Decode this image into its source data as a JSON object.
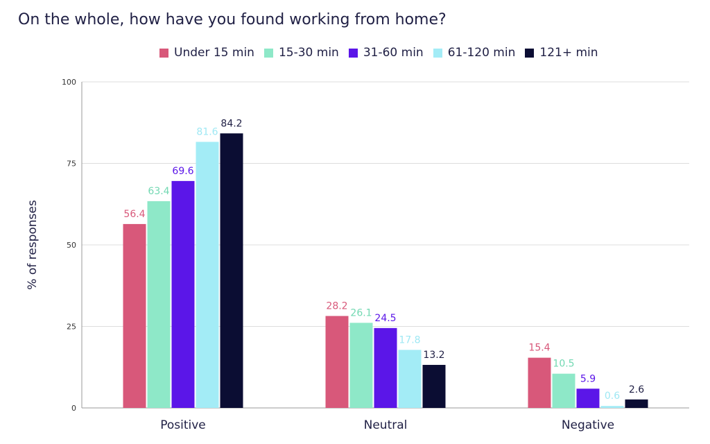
{
  "chart_data": {
    "type": "bar",
    "title": "On the whole, how have you found working from home?",
    "xlabel": "",
    "ylabel": "% of responses",
    "ylim": [
      0,
      100
    ],
    "yticks": [
      0,
      25,
      50,
      75,
      100
    ],
    "grid": true,
    "legend_position": "top",
    "categories": [
      "Positive",
      "Neutral",
      "Negative"
    ],
    "series": [
      {
        "name": "Under 15 min",
        "color": "#d8587a",
        "label_color": "#d8587a",
        "values": [
          56.4,
          28.2,
          15.4
        ]
      },
      {
        "name": "15-30 min",
        "color": "#8ee8c8",
        "label_color": "#72d8b2",
        "values": [
          63.4,
          26.1,
          10.5
        ]
      },
      {
        "name": "31-60 min",
        "color": "#5b16e8",
        "label_color": "#5b16e8",
        "values": [
          69.6,
          24.5,
          5.9
        ]
      },
      {
        "name": "61-120 min",
        "color": "#a3ecf6",
        "label_color": "#9fe8f4",
        "values": [
          81.6,
          17.8,
          0.6
        ]
      },
      {
        "name": "121+ min",
        "color": "#0b0d33",
        "label_color": "#1f1f44",
        "values": [
          84.2,
          13.2,
          2.6
        ]
      }
    ]
  }
}
